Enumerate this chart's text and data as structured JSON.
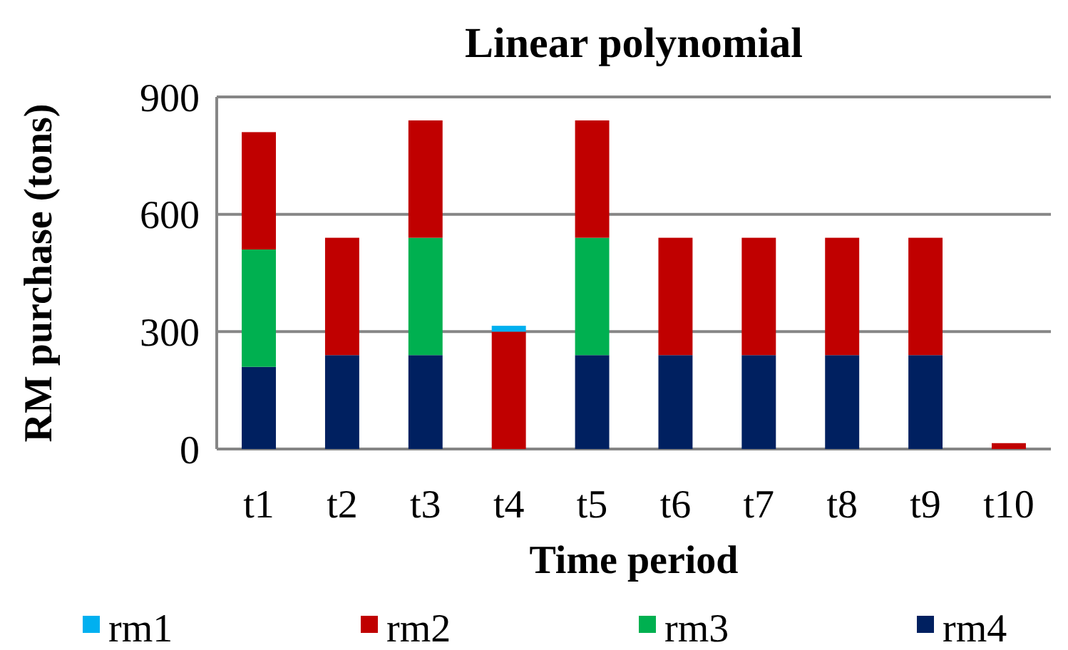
{
  "chart_data": {
    "type": "bar",
    "title": "Linear polynomial",
    "xlabel": "Time period",
    "ylabel": "RM purchase (tons)",
    "categories": [
      "t1",
      "t2",
      "t3",
      "t4",
      "t5",
      "t6",
      "t7",
      "t8",
      "t9",
      "t10"
    ],
    "stacked": true,
    "ylim": [
      0,
      900
    ],
    "yticks": [
      0,
      300,
      600,
      900
    ],
    "grid": "y",
    "legend": "bottom",
    "series": [
      {
        "name": "rm4",
        "color": "#002060",
        "values": [
          210,
          240,
          240,
          0,
          240,
          240,
          240,
          240,
          240,
          0
        ]
      },
      {
        "name": "rm3",
        "color": "#00b050",
        "values": [
          300,
          0,
          300,
          0,
          300,
          0,
          0,
          0,
          0,
          0
        ]
      },
      {
        "name": "rm2",
        "color": "#c00000",
        "values": [
          300,
          300,
          300,
          300,
          300,
          300,
          300,
          300,
          300,
          15
        ]
      },
      {
        "name": "rm1",
        "color": "#00b0f0",
        "values": [
          0,
          0,
          0,
          15,
          0,
          0,
          0,
          0,
          0,
          0
        ]
      }
    ]
  }
}
